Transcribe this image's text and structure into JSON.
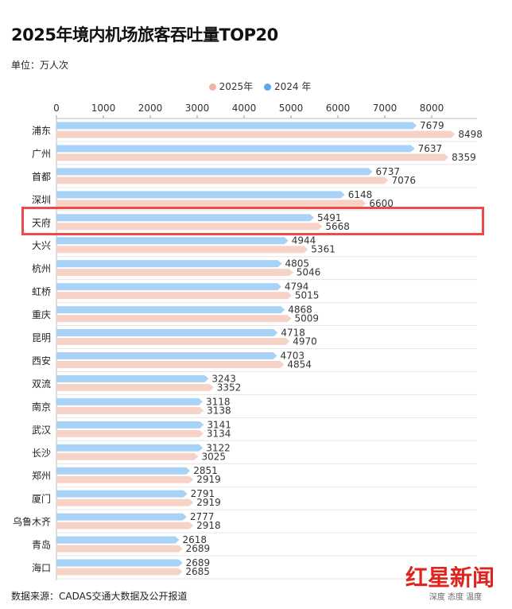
{
  "header": {
    "title": "2025年境内机场旅客吞吐量TOP20",
    "unit": "单位：万人次"
  },
  "footer": {
    "source": "数据来源：CADAS交通大数据及公开报道",
    "logo": "红星新闻",
    "slogan": "深度 态度 温度"
  },
  "colors": {
    "y2025": "#f6d3c6",
    "y2024": "#a9d2f7",
    "legend2025": "#f0b5a0",
    "legend2024": "#5ba9ec",
    "highlight": "#f0494a"
  },
  "chart_data": {
    "type": "bar",
    "orientation": "horizontal",
    "title": "2025年境内机场旅客吞吐量TOP20",
    "unit": "单位：万人次",
    "xlim": [
      0,
      8000
    ],
    "xticks": [
      0,
      1000,
      2000,
      3000,
      4000,
      5000,
      6000,
      7000,
      8000
    ],
    "legend_position": "top",
    "highlighted_category": "天府",
    "categories": [
      "浦东",
      "广州",
      "首都",
      "深圳",
      "天府",
      "大兴",
      "杭州",
      "虹桥",
      "重庆",
      "昆明",
      "西安",
      "双流",
      "南京",
      "武汉",
      "长沙",
      "郑州",
      "厦门",
      "乌鲁木齐",
      "青岛",
      "海口"
    ],
    "series": [
      {
        "name": "2024 年",
        "color": "#a9d2f7",
        "values": [
          7679,
          7637,
          6737,
          6148,
          5491,
          4944,
          4805,
          4794,
          4868,
          4718,
          4703,
          3243,
          3118,
          3141,
          3122,
          2851,
          2791,
          2777,
          2618,
          2689
        ]
      },
      {
        "name": "2025年",
        "color": "#f6d3c6",
        "values": [
          8498,
          8359,
          7076,
          6600,
          5668,
          5361,
          5046,
          5015,
          5009,
          4970,
          4854,
          3352,
          3138,
          3134,
          3025,
          2919,
          2919,
          2918,
          2689,
          2685
        ]
      }
    ]
  }
}
